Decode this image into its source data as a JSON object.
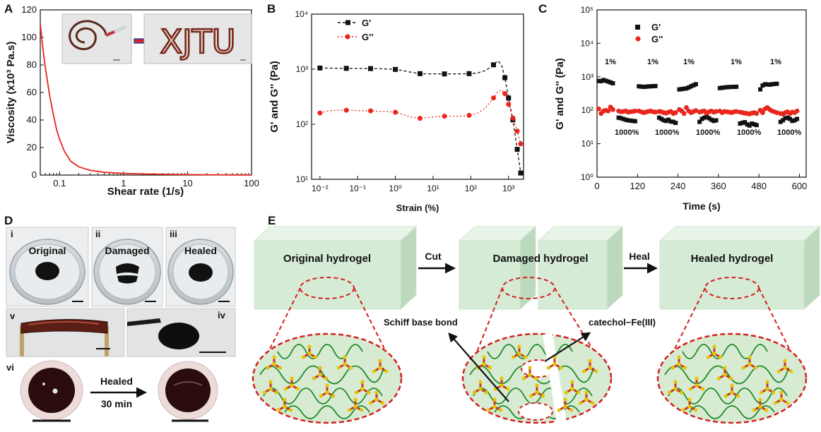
{
  "panels": {
    "a": {
      "letter": "A",
      "inset_text": "XJTU",
      "chart_data": {
        "type": "line",
        "xscale": "log",
        "xlim": [
          0.05,
          100
        ],
        "ylim": [
          0,
          120
        ],
        "xlabel": "Shear rate (1/s)",
        "ylabel": "Viscosity (x10³ Pa.s)",
        "x_ticks": [
          "0.1",
          "1",
          "10",
          "100"
        ],
        "y_ticks": [
          "0",
          "20",
          "40",
          "60",
          "80",
          "100",
          "120"
        ],
        "color": "#e8261c",
        "x": [
          0.05,
          0.055,
          0.06,
          0.07,
          0.08,
          0.09,
          0.1,
          0.12,
          0.15,
          0.2,
          0.3,
          0.5,
          1,
          2,
          5,
          10,
          30,
          100
        ],
        "y": [
          110,
          92,
          78,
          58,
          44,
          33,
          26,
          17,
          10,
          6,
          3.5,
          2,
          1.2,
          0.8,
          0.5,
          0.3,
          0.2,
          0.1
        ]
      }
    },
    "b": {
      "letter": "B",
      "chart_data": {
        "type": "line",
        "xscale": "log",
        "yscale": "log",
        "xlim": [
          0.006,
          2500
        ],
        "ylim": [
          10,
          10000
        ],
        "xlabel": "Strain (%)",
        "ylabel": "G' and G'' (Pa)",
        "x_ticks": [
          "10⁻²",
          "10⁻¹",
          "10⁰",
          "10¹",
          "10²",
          "10³"
        ],
        "y_ticks": [
          "10¹",
          "10²",
          "10³",
          "10⁴"
        ],
        "legend_position": "top-left",
        "series": [
          {
            "name": "G'",
            "color": "#111111",
            "marker": "square",
            "x": [
              0.01,
              0.017,
              0.03,
              0.05,
              0.08,
              0.13,
              0.22,
              0.35,
              0.6,
              1,
              1.6,
              2.6,
              4.5,
              7,
              12,
              20,
              33,
              55,
              90,
              150,
              250,
              400,
              520,
              650,
              800,
              1000,
              1300,
              1700,
              2100
            ],
            "y": [
              1050,
              1045,
              1040,
              1035,
              1030,
              1030,
              1025,
              1020,
              1010,
              990,
              940,
              880,
              830,
              820,
              820,
              820,
              820,
              820,
              830,
              850,
              950,
              1200,
              1420,
              1200,
              700,
              300,
              120,
              35,
              13
            ]
          },
          {
            "name": "G''",
            "color": "#e8261c",
            "marker": "circle",
            "x": [
              0.01,
              0.017,
              0.03,
              0.05,
              0.08,
              0.13,
              0.22,
              0.35,
              0.6,
              1,
              1.6,
              2.6,
              4.5,
              7,
              12,
              20,
              33,
              55,
              90,
              150,
              250,
              400,
              520,
              650,
              800,
              1000,
              1300,
              1700,
              2100
            ],
            "y": [
              160,
              175,
              180,
              180,
              178,
              176,
              175,
              172,
              170,
              165,
              150,
              135,
              128,
              132,
              137,
              140,
              140,
              140,
              145,
              158,
              200,
              300,
              390,
              420,
              360,
              230,
              130,
              75,
              44
            ]
          }
        ]
      }
    },
    "c": {
      "letter": "C",
      "annot_low": "1%",
      "annot_high": "1000%",
      "chart_data": {
        "type": "scatter",
        "yscale": "log",
        "xlim": [
          0,
          620
        ],
        "ylim": [
          1,
          100000
        ],
        "xlabel": "Time (s)",
        "ylabel": "G' and G'' (Pa)",
        "x_ticks": [
          "0",
          "120",
          "240",
          "360",
          "480",
          "600"
        ],
        "y_ticks": [
          "10⁰",
          "10¹",
          "10²",
          "10³",
          "10⁴",
          "10⁵"
        ],
        "legend_position": "top-left",
        "series": [
          {
            "name": "G'",
            "color": "#111111",
            "marker": "square",
            "x": [
              5,
              12,
              19,
              26,
              33,
              40,
              47,
              64,
              71,
              78,
              85,
              92,
              99,
              106,
              113,
              124,
              131,
              138,
              145,
              152,
              159,
              166,
              173,
              184,
              191,
              198,
              205,
              212,
              219,
              226,
              233,
              244,
              251,
              258,
              265,
              272,
              279,
              286,
              293,
              304,
              311,
              318,
              325,
              332,
              339,
              346,
              353,
              364,
              371,
              378,
              385,
              392,
              399,
              406,
              413,
              424,
              431,
              438,
              445,
              452,
              459,
              466,
              473,
              484,
              491,
              498,
              505,
              512,
              519,
              526,
              533,
              544,
              551,
              558,
              565,
              572,
              579,
              586,
              593
            ],
            "y": [
              750,
              740,
              800,
              760,
              720,
              680,
              640,
              60,
              58,
              55,
              52,
              50,
              49,
              48,
              47,
              520,
              510,
              500,
              505,
              515,
              520,
              525,
              530,
              60,
              55,
              50,
              48,
              52,
              46,
              45,
              42,
              420,
              430,
              440,
              450,
              480,
              520,
              560,
              600,
              45,
              55,
              60,
              65,
              58,
              52,
              48,
              50,
              460,
              470,
              480,
              490,
              495,
              500,
              500,
              505,
              40,
              42,
              44,
              38,
              35,
              40,
              38,
              36,
              420,
              550,
              600,
              590,
              580,
              600,
              610,
              620,
              45,
              50,
              58,
              60,
              55,
              48,
              50,
              55
            ]
          },
          {
            "name": "G''",
            "color": "#e8261c",
            "marker": "circle",
            "x": [
              5,
              12,
              19,
              26,
              33,
              40,
              47,
              64,
              71,
              78,
              85,
              92,
              99,
              106,
              113,
              124,
              131,
              138,
              145,
              152,
              159,
              166,
              173,
              184,
              191,
              198,
              205,
              212,
              219,
              226,
              233,
              244,
              251,
              258,
              265,
              272,
              279,
              286,
              293,
              304,
              311,
              318,
              325,
              332,
              339,
              346,
              353,
              364,
              371,
              378,
              385,
              392,
              399,
              406,
              413,
              424,
              431,
              438,
              445,
              452,
              459,
              466,
              473,
              484,
              491,
              498,
              505,
              512,
              519,
              526,
              533,
              544,
              551,
              558,
              565,
              572,
              579,
              586,
              593
            ],
            "y": [
              110,
              80,
              95,
              100,
              95,
              125,
              105,
              95,
              90,
              92,
              95,
              88,
              90,
              92,
              95,
              95,
              90,
              85,
              88,
              92,
              95,
              90,
              88,
              92,
              90,
              85,
              82,
              88,
              92,
              80,
              85,
              105,
              95,
              80,
              120,
              95,
              85,
              92,
              98,
              88,
              92,
              95,
              82,
              90,
              95,
              88,
              92,
              95,
              85,
              92,
              90,
              88,
              85,
              90,
              92,
              88,
              85,
              82,
              80,
              78,
              82,
              85,
              80,
              100,
              85,
              110,
              120,
              105,
              95,
              90,
              85,
              80,
              78,
              85,
              90,
              80,
              88,
              85,
              95
            ]
          }
        ]
      }
    },
    "d": {
      "letter": "D",
      "roman_i": "i",
      "roman_ii": "ii",
      "roman_iii": "iii",
      "roman_iv": "iv",
      "roman_v": "v",
      "roman_vi": "vi",
      "label_original": "Original",
      "label_damaged": "Damaged",
      "label_healed": "Healed",
      "arrow_label": "Healed",
      "arrow_time": "30 min"
    },
    "e": {
      "letter": "E",
      "original": "Original  hydrogel",
      "damaged": "Damaged  hydrogel",
      "healed": "Healed hydrogel",
      "cut": "Cut",
      "heal": "Heal",
      "schiff": "Schiff base bond",
      "catechol": "catechol−Fe(III)"
    }
  }
}
